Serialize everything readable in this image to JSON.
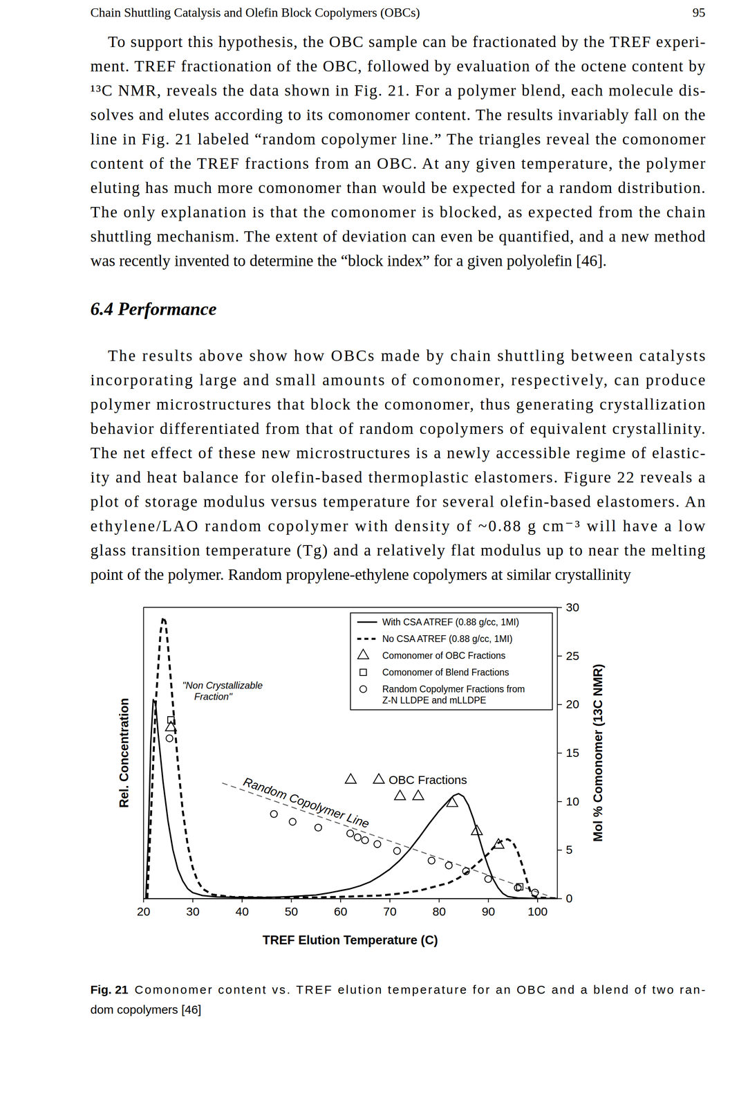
{
  "document": {
    "header": {
      "title": "Chain Shuttling Catalysis and Olefin Block Copolymers (OBCs)",
      "page": 95
    },
    "paragraphs": [
      [
        "To support this hypothesis, the OBC sample can be fractionated by the TREF experi-",
        "ment. TREF fractionation of the OBC, followed by evaluation of the octene content by",
        "¹³C NMR, reveals the data shown in Fig. 21. For a polymer blend, each molecule dis-",
        "solves and elutes according to its comonomer content. The results invariably fall on the",
        "line in Fig. 21 labeled “random copolymer line.” The triangles reveal the comonomer",
        "content of the TREF fractions from an OBC. At any given temperature, the polymer",
        "eluting has much more comonomer than would be expected for a random distribution.",
        "The only explanation is that the comonomer is blocked, as expected from the chain",
        "shuttling mechanism. The extent of deviation can even be quantified, and a new method",
        "was recently invented to determine the “block index” for a given polyolefin [46]."
      ],
      [
        "The results above show how OBCs made by chain shuttling between catalysts",
        "incorporating large and small amounts of comonomer, respectively, can produce",
        "polymer microstructures that block the comonomer, thus generating crystallization",
        "behavior differentiated from that of random copolymers of equivalent crystallinity.",
        "The net effect of these new microstructures is a newly accessible regime of elastic-",
        "ity and heat balance for olefin-based thermoplastic elastomers. Figure 22 reveals a",
        "plot of storage modulus versus temperature for several olefin-based elastomers. An",
        "ethylene/LAO random copolymer with density of ~0.88 g cm⁻³ will have a low",
        "glass transition temperature (Tg) and a relatively flat modulus up to near the melting",
        "point of the polymer. Random propylene-ethylene copolymers at similar crystallinity"
      ]
    ],
    "section": "6.4 Performance",
    "caption": {
      "label": "Fig. 21",
      "lines": [
        "Comonomer content vs. TREF elution temperature for an OBC and a blend of two ran-",
        "dom copolymers [46]"
      ]
    }
  },
  "chart_data": {
    "type": "line",
    "xlabel": "TREF Elution Temperature (C)",
    "ylabel": "Mol % Comonomer (13C NMR)",
    "y2label": "Rel. Concentration",
    "xlim": [
      20,
      104
    ],
    "xticks": [
      20,
      30,
      40,
      50,
      60,
      70,
      80,
      90,
      100
    ],
    "ylim": [
      0,
      30
    ],
    "yticks": [
      0,
      5,
      10,
      15,
      20,
      25,
      30
    ],
    "y2lim": [
      0,
      30
    ],
    "legend": "top-right",
    "series": [
      {
        "name": "With CSA ATREF (0.88 g/cc, 1MI)",
        "type": "line",
        "line_style": "solid",
        "color": "#000000",
        "axis": "y2",
        "x": [
          20.5,
          21,
          21.5,
          22,
          22.5,
          23,
          24,
          25,
          26,
          27,
          28,
          29,
          30,
          32,
          35,
          40,
          45,
          50,
          55,
          58,
          60,
          62,
          64,
          66,
          68,
          70,
          72,
          74,
          76,
          78,
          80,
          82,
          83,
          84,
          85,
          86,
          87,
          88,
          89,
          90,
          91,
          92,
          93,
          94,
          96,
          100,
          104
        ],
        "values": [
          0,
          6,
          16,
          20.5,
          20,
          17,
          12,
          8,
          5,
          3,
          1.8,
          1,
          0.6,
          0.3,
          0.15,
          0.1,
          0.1,
          0.2,
          0.35,
          0.6,
          0.8,
          1,
          1.3,
          1.7,
          2.3,
          3,
          3.9,
          5,
          6.3,
          7.7,
          9,
          10.1,
          10.6,
          10.8,
          10.5,
          9.6,
          8.2,
          6.5,
          4.8,
          3.3,
          2,
          1.1,
          0.5,
          0.2,
          0.05,
          0,
          0
        ]
      },
      {
        "name": "No CSA ATREF (0.88 g/cc, 1MI)",
        "type": "line",
        "line_style": "dashed",
        "color": "#000000",
        "axis": "y2",
        "x": [
          20.8,
          21.5,
          22.5,
          23.5,
          24,
          24.5,
          25,
          26,
          27,
          28,
          29,
          30,
          31,
          32,
          34,
          38,
          45,
          55,
          62,
          68,
          72,
          76,
          79,
          82,
          84,
          86,
          88,
          90,
          91,
          92,
          93,
          94,
          95,
          96,
          97,
          98,
          98.5,
          99,
          100,
          104
        ],
        "values": [
          0,
          8,
          20,
          27.5,
          29,
          28.5,
          26,
          20,
          14,
          9,
          5.5,
          3.2,
          1.8,
          1,
          0.4,
          0.15,
          0.1,
          0.1,
          0.2,
          0.3,
          0.5,
          0.8,
          1.2,
          1.6,
          2.1,
          2.8,
          3.7,
          4.6,
          5.2,
          5.7,
          6,
          6.1,
          5.8,
          4.8,
          3.3,
          1.6,
          0.8,
          0.3,
          0.1,
          0
        ]
      },
      {
        "name": "Comonomer of OBC Fractions",
        "type": "scatter",
        "marker": "triangle",
        "color": "#000000",
        "x": [
          25.6,
          62.1,
          67.8,
          72.1,
          75.8,
          82.7,
          87.7,
          92.1
        ],
        "values": [
          17.6,
          12.2,
          12.2,
          10.5,
          10.5,
          9.8,
          6.9,
          5.5
        ]
      },
      {
        "name": "Comonomer of Blend Fractions",
        "type": "scatter",
        "marker": "square",
        "color": "#000000",
        "x": [
          25.6,
          96.4
        ],
        "values": [
          18.4,
          1.2
        ]
      },
      {
        "name": "Random Copolymer Fractions from Z-N LLDPE and mLLDPE",
        "type": "scatter",
        "marker": "circle",
        "color": "#000000",
        "x": [
          25.3,
          46.5,
          50.3,
          55.5,
          62,
          63.5,
          65,
          67.5,
          71.5,
          78.5,
          82,
          85.5,
          90,
          96,
          99.5
        ],
        "values": [
          16.5,
          8.7,
          7.9,
          7.3,
          6.7,
          6.3,
          6,
          5.6,
          4.9,
          3.9,
          3.4,
          2.8,
          2,
          1.1,
          0.6
        ]
      }
    ],
    "reference_line": {
      "label": "Random Copolymer Line",
      "line_style": "dashed",
      "color": "#555555",
      "x": [
        36,
        102
      ],
      "values": [
        11.9,
        0.3
      ]
    },
    "annotations": [
      {
        "text": "\"Non Crystallizable Fraction\"",
        "x": 27.9,
        "y": 21.6
      },
      {
        "text": "OBC Fractions",
        "x": 69.8,
        "y": 11.8
      }
    ]
  }
}
